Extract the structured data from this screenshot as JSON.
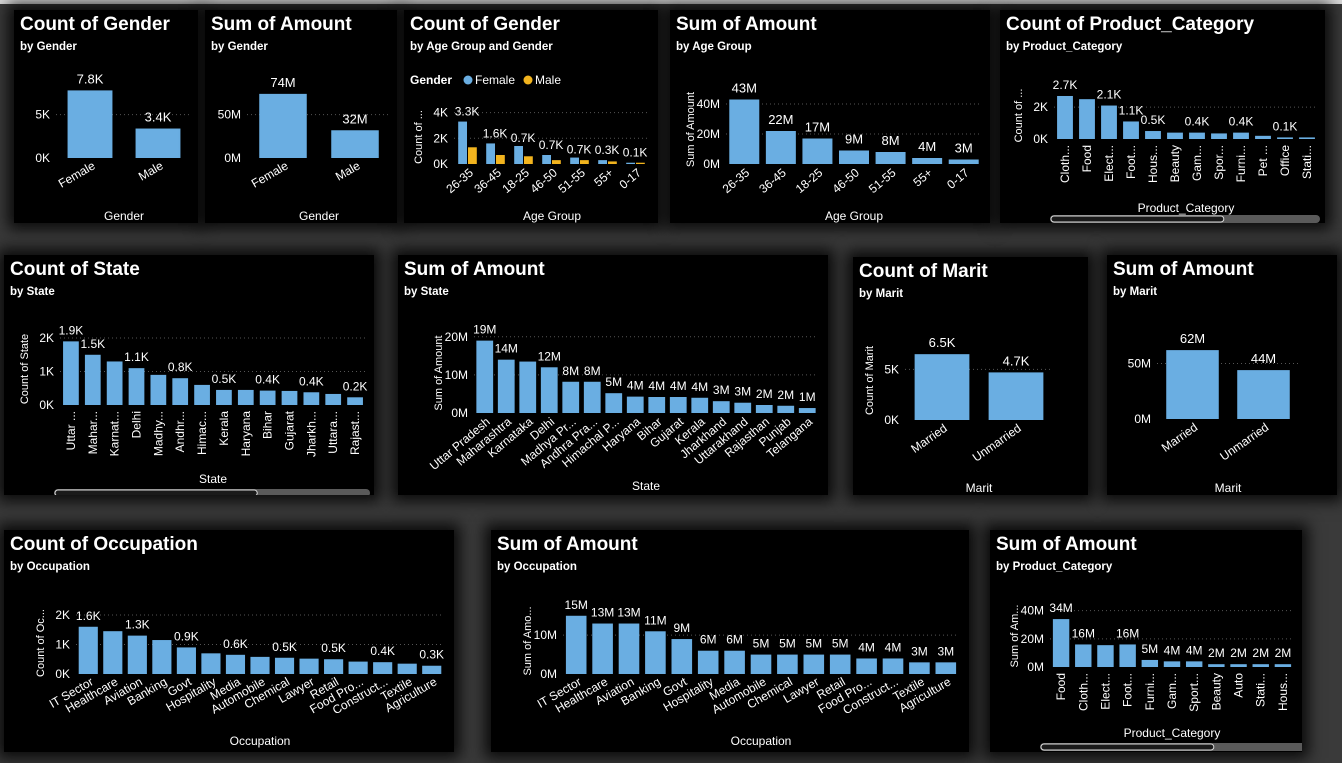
{
  "colors": {
    "bar": "#6aaee2",
    "male": "#f2b41e",
    "text": "#ffffff",
    "grid": "#555555",
    "scroll_track": "#5a5a5a",
    "scroll_thumb": "#d9d9d9"
  },
  "charts": [
    {
      "id": "c1",
      "title": "Count of Gender",
      "subtitle": "by Gender",
      "type": "bar",
      "xlabel": "Gender",
      "ylabel": "",
      "categories": [
        "Female",
        "Male"
      ],
      "values": [
        7800,
        3400
      ],
      "labels": [
        "7.8K",
        "3.4K"
      ],
      "yticks": [
        {
          "v": 0,
          "t": "0K"
        },
        {
          "v": 5000,
          "t": "5K"
        }
      ],
      "ymax": 9000,
      "rotate": -30
    },
    {
      "id": "c2",
      "title": "Sum of Amount",
      "subtitle": "by Gender",
      "type": "bar",
      "xlabel": "Gender",
      "ylabel": "",
      "categories": [
        "Female",
        "Male"
      ],
      "values": [
        74,
        32
      ],
      "labels": [
        "74M",
        "32M"
      ],
      "yticks": [
        {
          "v": 0,
          "t": "0M"
        },
        {
          "v": 50,
          "t": "50M"
        }
      ],
      "ymax": 90,
      "rotate": -30
    },
    {
      "id": "c3",
      "title": "Count of Gender",
      "subtitle": "by Age Group and Gender",
      "type": "grouped",
      "xlabel": "Age Group",
      "ylabel": "Count of ...",
      "legend_title": "Gender",
      "categories": [
        "26-35",
        "36-45",
        "18-25",
        "46-50",
        "51-55",
        "55+",
        "0-17"
      ],
      "series": [
        {
          "name": "Female",
          "values": [
            3300,
            1600,
            1400,
            700,
            500,
            300,
            100
          ],
          "color_key": "bar"
        },
        {
          "name": "Male",
          "values": [
            1300,
            700,
            600,
            300,
            300,
            200,
            100
          ],
          "color_key": "male"
        }
      ],
      "labels": [
        "3.3K",
        "1.6K",
        "0.7K",
        "0.7K",
        "0.3K",
        "0.1K"
      ],
      "yticks": [
        {
          "v": 0,
          "t": "0K"
        },
        {
          "v": 2000,
          "t": "2K"
        },
        {
          "v": 4000,
          "t": "4K"
        }
      ],
      "ymax": 4200,
      "rotate": -40
    },
    {
      "id": "c4",
      "title": "Sum of Amount",
      "subtitle": "by Age Group",
      "type": "bar",
      "xlabel": "Age Group",
      "ylabel": "Sum of Amount",
      "categories": [
        "26-35",
        "36-45",
        "18-25",
        "46-50",
        "51-55",
        "55+",
        "0-17"
      ],
      "values": [
        43,
        22,
        17,
        9,
        8,
        4,
        3
      ],
      "labels": [
        "43M",
        "22M",
        "17M",
        "9M",
        "8M",
        "4M",
        "3M"
      ],
      "yticks": [
        {
          "v": 0,
          "t": "0M"
        },
        {
          "v": 20,
          "t": "20M"
        },
        {
          "v": 40,
          "t": "40M"
        }
      ],
      "ymax": 46,
      "rotate": -40
    },
    {
      "id": "c5",
      "title": "Count of Product_Category",
      "subtitle": "by Product_Category",
      "type": "bar",
      "xlabel": "Product_Category",
      "ylabel": "Count of ...",
      "categories": [
        "Cloth...",
        "Food",
        "Elect...",
        "Foot...",
        "Hous...",
        "Beauty",
        "Gam...",
        "Spor...",
        "Furni...",
        "Pet ...",
        "Office",
        "Stati..."
      ],
      "values": [
        2700,
        2500,
        2100,
        1100,
        500,
        400,
        400,
        350,
        400,
        200,
        100,
        100
      ],
      "labels": [
        "2.7K",
        "",
        "2.1K",
        "1.1K",
        "0.5K",
        "",
        "0.4K",
        "",
        "0.4K",
        "",
        "0.1K",
        ""
      ],
      "yticks": [
        {
          "v": 0,
          "t": "0K"
        },
        {
          "v": 2000,
          "t": "2K"
        }
      ],
      "ymax": 2950,
      "rotate": -90,
      "scroll": true
    },
    {
      "id": "c6",
      "title": "Count of State",
      "subtitle": "by State",
      "type": "bar",
      "xlabel": "State",
      "ylabel": "Count of State",
      "categories": [
        "Uttar ...",
        "Mahar...",
        "Karnat...",
        "Delhi",
        "Madhy...",
        "Andhr...",
        "Himac...",
        "Kerala",
        "Haryana",
        "Bihar",
        "Gujarat",
        "Jharkh...",
        "Uttara...",
        "Rajast..."
      ],
      "values": [
        1900,
        1500,
        1300,
        1100,
        900,
        800,
        600,
        450,
        450,
        430,
        420,
        380,
        330,
        230
      ],
      "labels": [
        "1.9K",
        "1.5K",
        "",
        "1.1K",
        "",
        "0.8K",
        "",
        "0.5K",
        "",
        "0.4K",
        "",
        "0.4K",
        "",
        "0.2K"
      ],
      "yticks": [
        {
          "v": 0,
          "t": "0K"
        },
        {
          "v": 1000,
          "t": "1K"
        },
        {
          "v": 2000,
          "t": "2K"
        }
      ],
      "ymax": 2150,
      "rotate": -90,
      "scroll": true
    },
    {
      "id": "c7",
      "title": "Sum of Amount",
      "subtitle": "by State",
      "type": "bar",
      "xlabel": "State",
      "ylabel": "Sum of Amount",
      "categories": [
        "Uttar Pradesh",
        "Maharashtra",
        "Karnataka",
        "Delhi",
        "Madhya Pr...",
        "Andhra Pra...",
        "Himachal P...",
        "Haryana",
        "Bihar",
        "Gujarat",
        "Kerala",
        "Jharkhand",
        "Uttarakhand",
        "Rajasthan",
        "Punjab",
        "Telangana"
      ],
      "values": [
        19,
        14,
        13.5,
        12,
        8.2,
        8.2,
        5.2,
        4.3,
        4.2,
        4.2,
        4.0,
        3.1,
        2.7,
        2.1,
        1.9,
        1.3
      ],
      "labels": [
        "19M",
        "14M",
        "",
        "12M",
        "8M",
        "8M",
        "5M",
        "4M",
        "4M",
        "4M",
        "4M",
        "3M",
        "3M",
        "2M",
        "2M",
        "1M"
      ],
      "yticks": [
        {
          "v": 0,
          "t": "0M"
        },
        {
          "v": 10,
          "t": "10M"
        },
        {
          "v": 20,
          "t": "20M"
        }
      ],
      "ymax": 21,
      "rotate": -40
    },
    {
      "id": "c8",
      "title": "Count of Marit",
      "subtitle": "by Marit",
      "type": "bar",
      "xlabel": "Marit",
      "ylabel": "Count of Marit",
      "categories": [
        "Married",
        "Unmarried"
      ],
      "values": [
        6500,
        4700
      ],
      "labels": [
        "6.5K",
        "4.7K"
      ],
      "yticks": [
        {
          "v": 0,
          "t": "0K"
        },
        {
          "v": 5000,
          "t": "5K"
        }
      ],
      "ymax": 7800,
      "rotate": -35
    },
    {
      "id": "c9",
      "title": "Sum of Amount",
      "subtitle": "by Marit",
      "type": "bar",
      "xlabel": "Marit",
      "ylabel": "",
      "categories": [
        "Married",
        "Unmarried"
      ],
      "values": [
        62,
        44
      ],
      "labels": [
        "62M",
        "44M"
      ],
      "yticks": [
        {
          "v": 0,
          "t": "0M"
        },
        {
          "v": 50,
          "t": "50M"
        }
      ],
      "ymax": 72,
      "rotate": -35
    },
    {
      "id": "c10",
      "title": "Count of Occupation",
      "subtitle": "by Occupation",
      "type": "bar",
      "xlabel": "Occupation",
      "ylabel": "Count of Oc...",
      "categories": [
        "IT Sector",
        "Healthcare",
        "Aviation",
        "Banking",
        "Govt",
        "Hospitality",
        "Media",
        "Automobile",
        "Chemical",
        "Lawyer",
        "Retail",
        "Food Pro...",
        "Construct...",
        "Textile",
        "Agriculture"
      ],
      "values": [
        1600,
        1450,
        1300,
        1150,
        900,
        700,
        650,
        580,
        550,
        520,
        500,
        420,
        400,
        350,
        280
      ],
      "labels": [
        "1.6K",
        "",
        "1.3K",
        "",
        "0.9K",
        "",
        "0.6K",
        "",
        "0.5K",
        "",
        "0.5K",
        "",
        "0.4K",
        "",
        "0.3K"
      ],
      "yticks": [
        {
          "v": 0,
          "t": "0K"
        },
        {
          "v": 1000,
          "t": "1K"
        },
        {
          "v": 2000,
          "t": "2K"
        }
      ],
      "ymax": 2100,
      "rotate": -30
    },
    {
      "id": "c11",
      "title": "Sum of Amount",
      "subtitle": "by Occupation",
      "type": "bar",
      "xlabel": "Occupation",
      "ylabel": "Sum of Amo...",
      "categories": [
        "IT Sector",
        "Healthcare",
        "Aviation",
        "Banking",
        "Govt",
        "Hospitality",
        "Media",
        "Automobile",
        "Chemical",
        "Lawyer",
        "Retail",
        "Food Pro...",
        "Construct...",
        "Textile",
        "Agriculture"
      ],
      "values": [
        15,
        13,
        13,
        11,
        9,
        6,
        6,
        5,
        5,
        5,
        5,
        4,
        4,
        3,
        3
      ],
      "labels": [
        "15M",
        "13M",
        "13M",
        "11M",
        "9M",
        "6M",
        "6M",
        "5M",
        "5M",
        "5M",
        "5M",
        "4M",
        "4M",
        "3M",
        "3M"
      ],
      "yticks": [
        {
          "v": 0,
          "t": "0M"
        },
        {
          "v": 10,
          "t": "10M"
        }
      ],
      "ymax": 17,
      "rotate": -30
    },
    {
      "id": "c12",
      "title": "Sum of Amount",
      "subtitle": "by Product_Category",
      "type": "bar",
      "xlabel": "Product_Category",
      "ylabel": "Sum of Am...",
      "categories": [
        "Food",
        "Cloth...",
        "Elect...",
        "Foot...",
        "Furni...",
        "Gam...",
        "Sport...",
        "Beauty",
        "Auto",
        "Stati...",
        "Hous..."
      ],
      "values": [
        34,
        16,
        15.5,
        16,
        5,
        4,
        4,
        2,
        2,
        2,
        2
      ],
      "labels": [
        "34M",
        "16M",
        "",
        "16M",
        "5M",
        "4M",
        "4M",
        "2M",
        "2M",
        "2M",
        "2M"
      ],
      "yticks": [
        {
          "v": 0,
          "t": "0M"
        },
        {
          "v": 20,
          "t": "20M"
        },
        {
          "v": 40,
          "t": "40M"
        }
      ],
      "ymax": 44,
      "rotate": -90,
      "scroll": true
    }
  ],
  "chart_data": [
    {
      "type": "bar",
      "title": "Count of Gender",
      "subtitle": "by Gender",
      "xlabel": "Gender",
      "categories": [
        "Female",
        "Male"
      ],
      "values": [
        7800,
        3400
      ]
    },
    {
      "type": "bar",
      "title": "Sum of Amount",
      "subtitle": "by Gender",
      "xlabel": "Gender",
      "categories": [
        "Female",
        "Male"
      ],
      "values": [
        74000000,
        32000000
      ]
    },
    {
      "type": "bar",
      "title": "Count of Gender",
      "subtitle": "by Age Group and Gender",
      "xlabel": "Age Group",
      "ylabel": "Count of ...",
      "categories": [
        "26-35",
        "36-45",
        "18-25",
        "46-50",
        "51-55",
        "55+",
        "0-17"
      ],
      "series": [
        {
          "name": "Female",
          "values": [
            3300,
            1600,
            1400,
            700,
            500,
            300,
            100
          ]
        },
        {
          "name": "Male",
          "values": [
            1300,
            700,
            600,
            300,
            300,
            200,
            100
          ]
        }
      ]
    },
    {
      "type": "bar",
      "title": "Sum of Amount",
      "subtitle": "by Age Group",
      "xlabel": "Age Group",
      "ylabel": "Sum of Amount",
      "categories": [
        "26-35",
        "36-45",
        "18-25",
        "46-50",
        "51-55",
        "55+",
        "0-17"
      ],
      "values": [
        43000000,
        22000000,
        17000000,
        9000000,
        8000000,
        4000000,
        3000000
      ]
    },
    {
      "type": "bar",
      "title": "Count of Product_Category",
      "subtitle": "by Product_Category",
      "xlabel": "Product_Category",
      "categories": [
        "Cloth...",
        "Food",
        "Elect...",
        "Foot...",
        "Hous...",
        "Beauty",
        "Gam...",
        "Spor...",
        "Furni...",
        "Pet ...",
        "Office",
        "Stati..."
      ],
      "values": [
        2700,
        2500,
        2100,
        1100,
        500,
        400,
        400,
        350,
        400,
        200,
        100,
        100
      ]
    },
    {
      "type": "bar",
      "title": "Count of State",
      "subtitle": "by State",
      "xlabel": "State",
      "ylabel": "Count of State",
      "categories": [
        "Uttar ...",
        "Mahar...",
        "Karnat...",
        "Delhi",
        "Madhy...",
        "Andhr...",
        "Himac...",
        "Kerala",
        "Haryana",
        "Bihar",
        "Gujarat",
        "Jharkh...",
        "Uttara...",
        "Rajast..."
      ],
      "values": [
        1900,
        1500,
        1300,
        1100,
        900,
        800,
        600,
        450,
        450,
        430,
        420,
        380,
        330,
        230
      ]
    },
    {
      "type": "bar",
      "title": "Sum of Amount",
      "subtitle": "by State",
      "xlabel": "State",
      "ylabel": "Sum of Amount",
      "categories": [
        "Uttar Pradesh",
        "Maharashtra",
        "Karnataka",
        "Delhi",
        "Madhya Pr...",
        "Andhra Pra...",
        "Himachal P...",
        "Haryana",
        "Bihar",
        "Gujarat",
        "Kerala",
        "Jharkhand",
        "Uttarakhand",
        "Rajasthan",
        "Punjab",
        "Telangana"
      ],
      "values": [
        19000000,
        14000000,
        13500000,
        12000000,
        8200000,
        8200000,
        5200000,
        4300000,
        4200000,
        4200000,
        4000000,
        3100000,
        2700000,
        2100000,
        1900000,
        1300000
      ]
    },
    {
      "type": "bar",
      "title": "Count of Marit",
      "subtitle": "by Marit",
      "xlabel": "Marit",
      "ylabel": "Count of Marit",
      "categories": [
        "Married",
        "Unmarried"
      ],
      "values": [
        6500,
        4700
      ]
    },
    {
      "type": "bar",
      "title": "Sum of Amount",
      "subtitle": "by Marit",
      "xlabel": "Marit",
      "categories": [
        "Married",
        "Unmarried"
      ],
      "values": [
        62000000,
        44000000
      ]
    },
    {
      "type": "bar",
      "title": "Count of Occupation",
      "subtitle": "by Occupation",
      "xlabel": "Occupation",
      "ylabel": "Count of Oc...",
      "categories": [
        "IT Sector",
        "Healthcare",
        "Aviation",
        "Banking",
        "Govt",
        "Hospitality",
        "Media",
        "Automobile",
        "Chemical",
        "Lawyer",
        "Retail",
        "Food Pro...",
        "Construct...",
        "Textile",
        "Agriculture"
      ],
      "values": [
        1600,
        1450,
        1300,
        1150,
        900,
        700,
        650,
        580,
        550,
        520,
        500,
        420,
        400,
        350,
        280
      ]
    },
    {
      "type": "bar",
      "title": "Sum of Amount",
      "subtitle": "by Occupation",
      "xlabel": "Occupation",
      "ylabel": "Sum of Amo...",
      "categories": [
        "IT Sector",
        "Healthcare",
        "Aviation",
        "Banking",
        "Govt",
        "Hospitality",
        "Media",
        "Automobile",
        "Chemical",
        "Lawyer",
        "Retail",
        "Food Pro...",
        "Construct...",
        "Textile",
        "Agriculture"
      ],
      "values": [
        15000000,
        13000000,
        13000000,
        11000000,
        9000000,
        6000000,
        6000000,
        5000000,
        5000000,
        5000000,
        5000000,
        4000000,
        4000000,
        3000000,
        3000000
      ]
    },
    {
      "type": "bar",
      "title": "Sum of Amount",
      "subtitle": "by Product_Category",
      "xlabel": "Product_Category",
      "ylabel": "Sum of Am...",
      "categories": [
        "Food",
        "Cloth...",
        "Elect...",
        "Foot...",
        "Furni...",
        "Gam...",
        "Sport...",
        "Beauty",
        "Auto",
        "Stati...",
        "Hous..."
      ],
      "values": [
        34000000,
        16000000,
        15500000,
        16000000,
        5000000,
        4000000,
        4000000,
        2000000,
        2000000,
        2000000,
        2000000
      ]
    }
  ]
}
